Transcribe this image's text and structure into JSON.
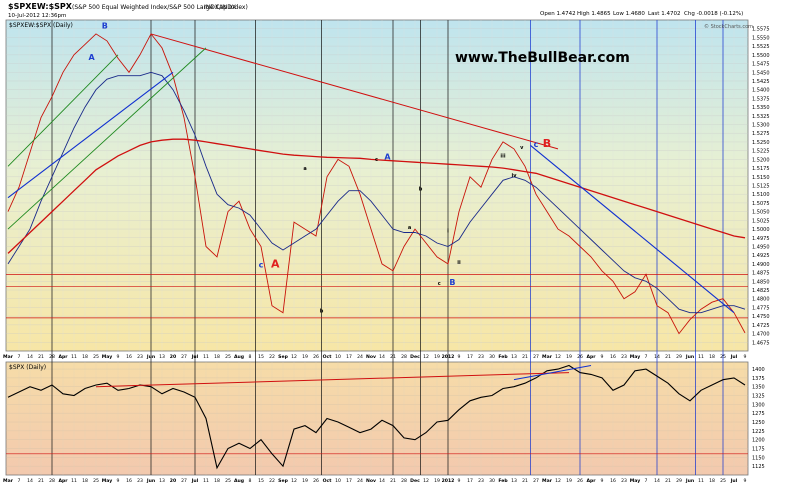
{
  "header": {
    "title": "$SPXEW:$SPX",
    "subtitle": "(S&P 500 Equal Weighted Index/S&P 500 Large Cap Index)",
    "exchange": "INDX/INDX",
    "date": "10-Jul-2012 12:36pm",
    "series_label": "$SPXEW:$SPX (Daily)",
    "open": "Open 1.4742",
    "high": "High 1.4865",
    "low": "Low 1.4680",
    "last": "Last 1.4702",
    "chg": "Chg -0.0018 (-0.12%)",
    "copyright": "© StockCharts.com",
    "watermark": "www.TheBullBear.com",
    "lower_label": "$SPX (Daily)"
  },
  "colors": {
    "price": "#c8140a",
    "ma_short": "#1a2a8a",
    "ma_long": "#d01010",
    "trendline": "#d01010",
    "channel": "#208a20",
    "blue_line": "#1030d0",
    "grid_top_start": "#bfe3ee",
    "grid_bottom": "#f5d0b0"
  },
  "annotations": [
    {
      "text": "A",
      "color": "#1f3fd0"
    },
    {
      "text": "B",
      "color": "#1f3fd0"
    },
    {
      "text": "c",
      "color": "#1f3fd0"
    },
    {
      "text": "A",
      "color": "#e02020"
    },
    {
      "text": "a",
      "color": "#000000"
    },
    {
      "text": "b",
      "color": "#000000"
    },
    {
      "text": "c",
      "color": "#000000"
    },
    {
      "text": "A",
      "color": "#1f3fd0"
    },
    {
      "text": "a",
      "color": "#000000"
    },
    {
      "text": "b",
      "color": "#000000"
    },
    {
      "text": "i",
      "color": "#000000"
    },
    {
      "text": "ii",
      "color": "#000000"
    },
    {
      "text": "c",
      "color": "#000000"
    },
    {
      "text": "B",
      "color": "#1f3fd0"
    },
    {
      "text": "iii",
      "color": "#000000"
    },
    {
      "text": "iv",
      "color": "#000000"
    },
    {
      "text": "v",
      "color": "#000000"
    },
    {
      "text": "c",
      "color": "#1f3fd0"
    },
    {
      "text": "B",
      "color": "#e02020"
    }
  ],
  "chart_data": [
    {
      "type": "line",
      "title": "$SPXEW:$SPX (S&P 500 Equal Weighted Index/S&P 500 Large Cap Index)",
      "ylim": [
        1.465,
        1.56
      ],
      "y_ticks": [
        "1.5575",
        "1.5550",
        "1.5525",
        "1.5500",
        "1.5475",
        "1.5450",
        "1.5425",
        "1.5400",
        "1.5375",
        "1.5350",
        "1.5325",
        "1.5300",
        "1.5275",
        "1.5250",
        "1.5225",
        "1.5200",
        "1.5175",
        "1.5150",
        "1.5125",
        "1.5100",
        "1.5075",
        "1.5050",
        "1.5025",
        "1.5000",
        "1.4975",
        "1.4950",
        "1.4925",
        "1.4900",
        "1.4875",
        "1.4850",
        "1.4825",
        "1.4800",
        "1.4775",
        "1.4750",
        "1.4725",
        "1.4700",
        "1.4675"
      ],
      "x_ticks": [
        "Mar",
        "7",
        "14",
        "21",
        "28",
        "Apr",
        "11",
        "18",
        "25",
        "May",
        "9",
        "16",
        "23",
        "Jun",
        "13",
        "20",
        "27",
        "Jul",
        "11",
        "18",
        "25",
        "Aug",
        "8",
        "15",
        "22",
        "Sep",
        "12",
        "19",
        "26",
        "Oct",
        "10",
        "17",
        "24",
        "Nov",
        "14",
        "21",
        "28",
        "Dec",
        "12",
        "19",
        "2012",
        "9",
        "17",
        "23",
        "30",
        "Feb",
        "13",
        "21",
        "27",
        "Mar",
        "12",
        "19",
        "26",
        "Apr",
        "9",
        "16",
        "23",
        "May",
        "7",
        "14",
        "21",
        "29",
        "Jun",
        "11",
        "18",
        "25",
        "Jul",
        "9"
      ],
      "series": [
        {
          "name": "$SPXEW:$SPX",
          "values": [
            1.505,
            1.512,
            1.522,
            1.532,
            1.538,
            1.545,
            1.55,
            1.553,
            1.556,
            1.554,
            1.549,
            1.545,
            1.55,
            1.556,
            1.552,
            1.544,
            1.532,
            1.515,
            1.495,
            1.492,
            1.505,
            1.508,
            1.5,
            1.495,
            1.478,
            1.476,
            1.502,
            1.5,
            1.498,
            1.515,
            1.52,
            1.518,
            1.51,
            1.5,
            1.49,
            1.488,
            1.495,
            1.5,
            1.496,
            1.492,
            1.49,
            1.505,
            1.515,
            1.512,
            1.52,
            1.525,
            1.523,
            1.518,
            1.51,
            1.505,
            1.5,
            1.498,
            1.495,
            1.492,
            1.488,
            1.485,
            1.48,
            1.482,
            1.487,
            1.478,
            1.476,
            1.47,
            1.474,
            1.477,
            1.479,
            1.48,
            1.476,
            1.4702
          ]
        },
        {
          "name": "",
          "values": [
            1.49,
            1.495,
            1.5,
            1.508,
            1.515,
            1.522,
            1.529,
            1.535,
            1.54,
            1.543,
            1.544,
            1.544,
            1.544,
            1.545,
            1.544,
            1.54,
            1.534,
            1.527,
            1.518,
            1.51,
            1.507,
            1.506,
            1.504,
            1.5,
            1.496,
            1.494,
            1.496,
            1.498,
            1.5,
            1.504,
            1.508,
            1.511,
            1.511,
            1.508,
            1.504,
            1.5,
            1.499,
            1.499,
            1.498,
            1.496,
            1.495,
            1.497,
            1.502,
            1.506,
            1.51,
            1.514,
            1.515,
            1.514,
            1.512,
            1.509,
            1.506,
            1.503,
            1.5,
            1.497,
            1.494,
            1.491,
            1.488,
            1.486,
            1.485,
            1.483,
            1.48,
            1.477,
            1.476,
            1.476,
            1.477,
            1.478,
            1.478,
            1.477
          ]
        },
        {
          "name": "",
          "values": [
            1.493,
            1.496,
            1.499,
            1.502,
            1.505,
            1.508,
            1.511,
            1.514,
            1.517,
            1.519,
            1.521,
            1.5225,
            1.524,
            1.525,
            1.5255,
            1.5258,
            1.5258,
            1.5255,
            1.525,
            1.5245,
            1.524,
            1.5235,
            1.523,
            1.5225,
            1.522,
            1.5215,
            1.5212,
            1.521,
            1.5208,
            1.5206,
            1.5205,
            1.5204,
            1.5203,
            1.52,
            1.5198,
            1.5196,
            1.5194,
            1.5192,
            1.519,
            1.5188,
            1.5186,
            1.5184,
            1.5182,
            1.518,
            1.5178,
            1.5175,
            1.517,
            1.5165,
            1.516,
            1.515,
            1.514,
            1.513,
            1.512,
            1.511,
            1.51,
            1.509,
            1.508,
            1.507,
            1.506,
            1.505,
            1.504,
            1.503,
            1.502,
            1.501,
            1.5,
            1.499,
            1.498,
            1.4975
          ]
        }
      ]
    },
    {
      "type": "line",
      "title": "$SPX (Daily)",
      "ylim": [
        1100,
        1420
      ],
      "y_ticks": [
        "1400",
        "1375",
        "1350",
        "1325",
        "1300",
        "1275",
        "1250",
        "1225",
        "1200",
        "1175",
        "1150",
        "1125"
      ],
      "series": [
        {
          "name": "$SPX",
          "values": [
            1320,
            1335,
            1350,
            1340,
            1355,
            1330,
            1325,
            1345,
            1355,
            1360,
            1340,
            1345,
            1355,
            1350,
            1330,
            1345,
            1335,
            1320,
            1260,
            1120,
            1175,
            1190,
            1175,
            1200,
            1160,
            1125,
            1230,
            1240,
            1220,
            1260,
            1250,
            1235,
            1220,
            1230,
            1255,
            1240,
            1205,
            1200,
            1220,
            1250,
            1255,
            1285,
            1310,
            1320,
            1325,
            1345,
            1350,
            1360,
            1375,
            1395,
            1400,
            1410,
            1390,
            1385,
            1375,
            1340,
            1355,
            1395,
            1400,
            1380,
            1360,
            1330,
            1310,
            1340,
            1355,
            1370,
            1375,
            1355
          ]
        }
      ]
    }
  ]
}
